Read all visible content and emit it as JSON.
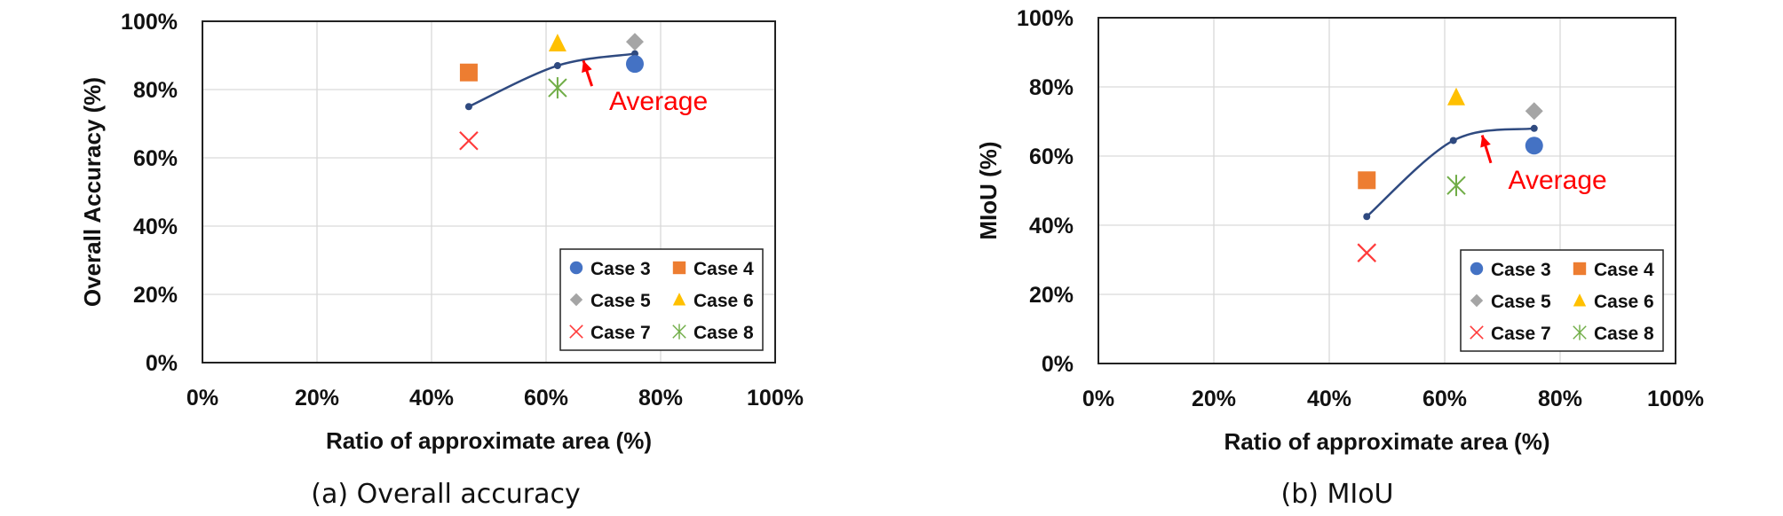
{
  "chart_data": [
    {
      "type": "scatter",
      "caption": "(a)  Overall  accuracy",
      "xlabel": "Ratio of approximate area (%)",
      "ylabel": "Overall Accuracy (%)",
      "xlim": [
        0,
        100
      ],
      "ylim": [
        0,
        100
      ],
      "x_ticks": [
        "0%",
        "20%",
        "40%",
        "60%",
        "80%",
        "100%"
      ],
      "y_ticks": [
        "0%",
        "20%",
        "40%",
        "60%",
        "80%",
        "100%"
      ],
      "grid": true,
      "legend_position": "bottom-right",
      "series": [
        {
          "name": "Case 3",
          "marker": "circle",
          "color": "#4472C4",
          "points": [
            {
              "x": 75.5,
              "y": 87.5
            }
          ]
        },
        {
          "name": "Case 4",
          "marker": "square",
          "color": "#ED7D31",
          "points": [
            {
              "x": 46.5,
              "y": 85
            }
          ]
        },
        {
          "name": "Case 5",
          "marker": "diamond",
          "color": "#A5A5A5",
          "points": [
            {
              "x": 75.5,
              "y": 94
            }
          ]
        },
        {
          "name": "Case 6",
          "marker": "triangle",
          "color": "#FFC000",
          "points": [
            {
              "x": 62,
              "y": 93.5
            }
          ]
        },
        {
          "name": "Case 7",
          "marker": "x",
          "color": "#FF3B3B",
          "points": [
            {
              "x": 46.5,
              "y": 65
            }
          ]
        },
        {
          "name": "Case 8",
          "marker": "star",
          "color": "#70AD47",
          "points": [
            {
              "x": 62,
              "y": 80.5
            }
          ]
        }
      ],
      "average_line": {
        "color": "#2F4A80",
        "points": [
          {
            "x": 46.5,
            "y": 75
          },
          {
            "x": 62,
            "y": 87
          },
          {
            "x": 75.5,
            "y": 90.5
          }
        ]
      },
      "annotation": {
        "text": "Average",
        "color": "#FF0000",
        "text_x": 71,
        "text_y": 74,
        "arrow_from": [
          68,
          81
        ],
        "arrow_to": [
          66.5,
          88.5
        ]
      }
    },
    {
      "type": "scatter",
      "caption": "(b)  MIoU",
      "xlabel": "Ratio of approximate area (%)",
      "ylabel": "MIoU (%)",
      "xlim": [
        0,
        100
      ],
      "ylim": [
        0,
        100
      ],
      "x_ticks": [
        "0%",
        "20%",
        "40%",
        "60%",
        "80%",
        "100%"
      ],
      "y_ticks": [
        "0%",
        "20%",
        "40%",
        "60%",
        "80%",
        "100%"
      ],
      "grid": true,
      "legend_position": "bottom-right",
      "series": [
        {
          "name": "Case 3",
          "marker": "circle",
          "color": "#4472C4",
          "points": [
            {
              "x": 75.5,
              "y": 63
            }
          ]
        },
        {
          "name": "Case 4",
          "marker": "square",
          "color": "#ED7D31",
          "points": [
            {
              "x": 46.5,
              "y": 53
            }
          ]
        },
        {
          "name": "Case 5",
          "marker": "diamond",
          "color": "#A5A5A5",
          "points": [
            {
              "x": 75.5,
              "y": 73
            }
          ]
        },
        {
          "name": "Case 6",
          "marker": "triangle",
          "color": "#FFC000",
          "points": [
            {
              "x": 62,
              "y": 77
            }
          ]
        },
        {
          "name": "Case 7",
          "marker": "x",
          "color": "#FF3B3B",
          "points": [
            {
              "x": 46.5,
              "y": 32
            }
          ]
        },
        {
          "name": "Case 8",
          "marker": "star",
          "color": "#70AD47",
          "points": [
            {
              "x": 62,
              "y": 51.5
            }
          ]
        }
      ],
      "average_line": {
        "color": "#2F4A80",
        "points": [
          {
            "x": 46.5,
            "y": 42.5
          },
          {
            "x": 61.5,
            "y": 64.5
          },
          {
            "x": 75.5,
            "y": 68
          }
        ]
      },
      "annotation": {
        "text": "Average",
        "color": "#FF0000",
        "text_x": 71,
        "text_y": 50.5,
        "arrow_from": [
          68,
          58
        ],
        "arrow_to": [
          66.5,
          66
        ]
      }
    }
  ]
}
